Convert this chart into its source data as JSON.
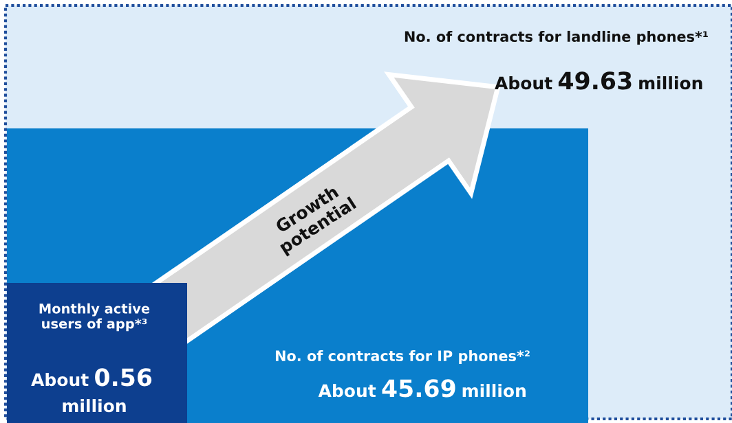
{
  "chart_data": {
    "type": "other",
    "categories": [
      "No. of contracts for landline phones*¹",
      "No. of contracts for IP phones*²",
      "Monthly active\nusers of app*³"
    ],
    "values": [
      49.63,
      45.69,
      0.56
    ],
    "data_labels": true,
    "colors": [
      "#ddecf9",
      "#0a7fcc",
      "#0d3f8f"
    ],
    "annotations": [
      "Growth\npotential",
      "About",
      "million",
      "About",
      "million",
      "About",
      "million"
    ]
  }
}
